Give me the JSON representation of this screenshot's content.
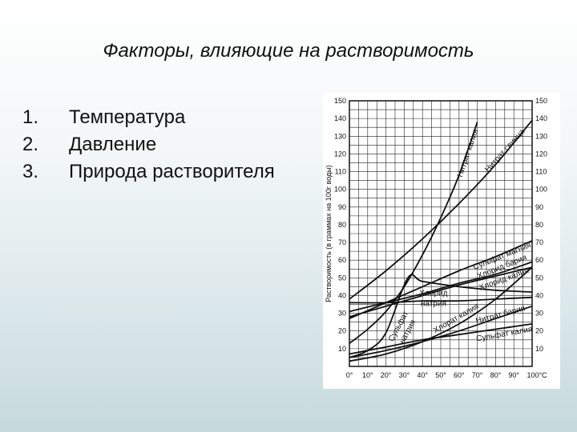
{
  "slide": {
    "title": "Факторы, влияющие на растворимость",
    "items": [
      {
        "number": "1.",
        "text": "Температура"
      },
      {
        "number": "2.",
        "text": "Давление"
      },
      {
        "number": "3.",
        "text": "Природа растворителя"
      }
    ]
  },
  "chart_data": {
    "type": "line",
    "title": "",
    "xlabel": "",
    "ylabel": "Растворимость (в граммах на 100г воды)",
    "xlim": [
      0,
      100
    ],
    "ylim": [
      0,
      150
    ],
    "x_ticks": [
      0,
      10,
      20,
      30,
      40,
      50,
      60,
      70,
      80,
      90,
      100
    ],
    "x_tick_labels": [
      "0°",
      "10°",
      "20°",
      "30°",
      "40°",
      "50°",
      "60°",
      "70°",
      "80°",
      "90°",
      "100°C"
    ],
    "y_ticks": [
      10,
      20,
      30,
      40,
      50,
      60,
      70,
      80,
      90,
      100,
      110,
      120,
      130,
      140,
      150
    ],
    "grid": true,
    "series": [
      {
        "name": "Нитрат калия",
        "x": [
          0,
          10,
          20,
          30,
          40,
          50,
          60,
          70
        ],
        "y": [
          13,
          21,
          31,
          45,
          63,
          84,
          108,
          138
        ]
      },
      {
        "name": "Нитрат свинца",
        "x": [
          0,
          20,
          40,
          60,
          80,
          100
        ],
        "y": [
          38,
          54,
          72,
          92,
          114,
          139
        ]
      },
      {
        "name": "Сульфат магния",
        "x": [
          0,
          20,
          40,
          60,
          80,
          100
        ],
        "y": [
          27,
          36,
          45,
          54,
          62,
          71
        ]
      },
      {
        "name": "Хлорид бария",
        "x": [
          0,
          20,
          40,
          60,
          80,
          100
        ],
        "y": [
          31,
          36,
          41,
          47,
          52,
          59
        ]
      },
      {
        "name": "Хлорид калия",
        "x": [
          0,
          20,
          40,
          60,
          80,
          100
        ],
        "y": [
          28,
          34,
          40,
          46,
          51,
          56
        ]
      },
      {
        "name": "Хлорид натрия",
        "x": [
          0,
          20,
          40,
          60,
          80,
          100
        ],
        "y": [
          36,
          36,
          37,
          37,
          38,
          39
        ]
      },
      {
        "name": "Сульфат натрия",
        "x": [
          0,
          10,
          20,
          32,
          40,
          60,
          80,
          100
        ],
        "y": [
          5,
          9,
          19,
          50,
          48,
          45,
          43,
          42
        ]
      },
      {
        "name": "Хлорат калия",
        "x": [
          0,
          20,
          40,
          60,
          80,
          100
        ],
        "y": [
          3,
          7,
          14,
          24,
          38,
          56
        ]
      },
      {
        "name": "Нитрат бария",
        "x": [
          0,
          20,
          40,
          60,
          80,
          100
        ],
        "y": [
          5,
          9,
          14,
          20,
          27,
          34
        ]
      },
      {
        "name": "Сульфат калия",
        "x": [
          0,
          20,
          40,
          60,
          80,
          100
        ],
        "y": [
          7,
          11,
          15,
          18,
          21,
          24
        ]
      }
    ],
    "curve_labels": [
      {
        "text": "Нитрат калия",
        "x": 66,
        "y": 120,
        "angle": -71
      },
      {
        "text": "Нитрат свинца",
        "x": 86,
        "y": 121,
        "angle": -48
      },
      {
        "text": "Сульфат магния",
        "x": 84,
        "y": 61,
        "angle": -22
      },
      {
        "text": "Хлорид бария",
        "x": 84,
        "y": 55,
        "angle": -22
      },
      {
        "text": "Хлорид калия",
        "x": 85,
        "y": 48,
        "angle": -20
      },
      {
        "text": "Хлорид",
        "x": 46,
        "y": 40,
        "angle": 0
      },
      {
        "text": "натрия",
        "x": 46,
        "y": 34,
        "angle": 0
      },
      {
        "text": "Сульфат",
        "x": 28,
        "y": 22,
        "angle": -62
      },
      {
        "text": "натрия",
        "x": 33,
        "y": 19,
        "angle": -62
      },
      {
        "text": "Хлорат калия",
        "x": 59,
        "y": 26,
        "angle": -30
      },
      {
        "text": "Нитрат бария",
        "x": 83,
        "y": 28,
        "angle": -15
      },
      {
        "text": "Сульфат калия",
        "x": 85,
        "y": 17,
        "angle": -10
      }
    ]
  }
}
